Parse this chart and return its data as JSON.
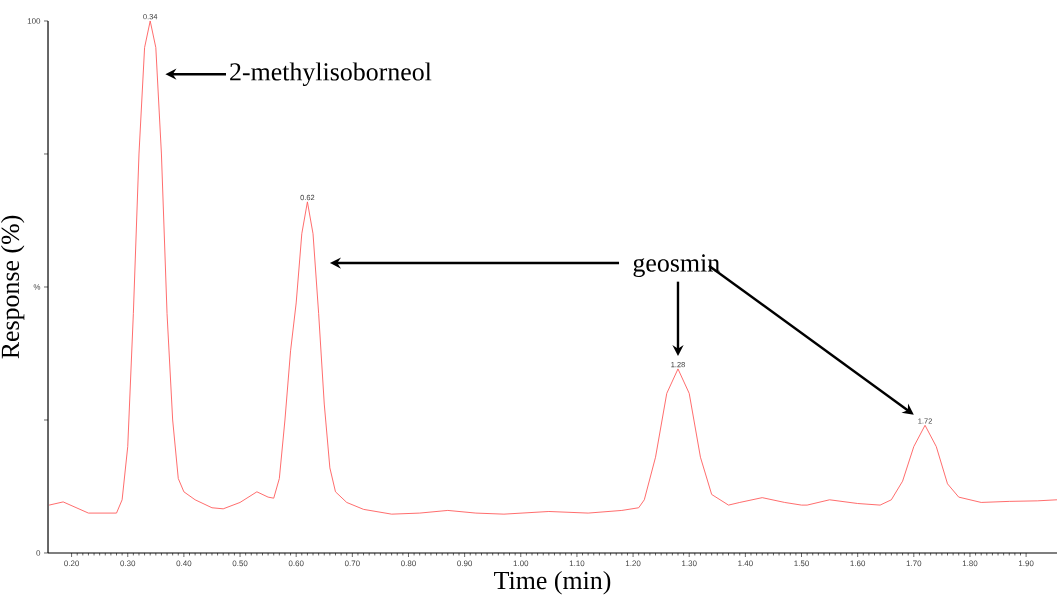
{
  "chart_data": {
    "type": "line",
    "xlabel": "Time (min)",
    "ylabel": "Response (%)",
    "color": "#ff5c5c",
    "x": [
      0.16,
      0.185,
      0.23,
      0.28,
      0.29,
      0.3,
      0.31,
      0.32,
      0.33,
      0.34,
      0.35,
      0.36,
      0.37,
      0.38,
      0.39,
      0.4,
      0.42,
      0.45,
      0.47,
      0.5,
      0.53,
      0.55,
      0.56,
      0.57,
      0.58,
      0.59,
      0.6,
      0.61,
      0.62,
      0.63,
      0.64,
      0.65,
      0.66,
      0.67,
      0.69,
      0.72,
      0.77,
      0.82,
      0.87,
      0.92,
      0.97,
      1.05,
      1.12,
      1.18,
      1.21,
      1.22,
      1.24,
      1.26,
      1.28,
      1.3,
      1.32,
      1.34,
      1.37,
      1.39,
      1.43,
      1.47,
      1.5,
      1.51,
      1.55,
      1.6,
      1.64,
      1.66,
      1.68,
      1.7,
      1.72,
      1.74,
      1.76,
      1.78,
      1.82,
      1.87,
      1.92,
      1.955
    ],
    "values": [
      9.0,
      9.6,
      7.5,
      7.5,
      10,
      20,
      45,
      75,
      95,
      100,
      95,
      75,
      45,
      25,
      14,
      11.5,
      10,
      8.5,
      8.3,
      9.5,
      11.5,
      10.5,
      10.3,
      14,
      25,
      38,
      47,
      60,
      66,
      60,
      45,
      28,
      16,
      11.5,
      9.5,
      8.2,
      7.3,
      7.5,
      8.0,
      7.5,
      7.3,
      7.8,
      7.5,
      8.0,
      8.5,
      10,
      18,
      30,
      34.6,
      30,
      18,
      11,
      9,
      9.5,
      10.4,
      9.5,
      9.0,
      9.0,
      10,
      9.3,
      9.0,
      10,
      13.5,
      20,
      24,
      20,
      13,
      10.5,
      9.5,
      9.7,
      9.8,
      10.0
    ],
    "xlim": [
      0.158,
      1.955
    ],
    "ylim": [
      0,
      100
    ],
    "xticks": [
      {
        "value": 0.2,
        "label": "0.20"
      },
      {
        "value": 0.3,
        "label": "0.30"
      },
      {
        "value": 0.4,
        "label": "0.40"
      },
      {
        "value": 0.5,
        "label": "0.50"
      },
      {
        "value": 0.6,
        "label": "0.60"
      },
      {
        "value": 0.7,
        "label": "0.70"
      },
      {
        "value": 0.8,
        "label": "0.80"
      },
      {
        "value": 0.9,
        "label": "0.90"
      },
      {
        "value": 1.0,
        "label": "1.00"
      },
      {
        "value": 1.1,
        "label": "1.10"
      },
      {
        "value": 1.2,
        "label": "1.20"
      },
      {
        "value": 1.3,
        "label": "1.30"
      },
      {
        "value": 1.4,
        "label": "1.40"
      },
      {
        "value": 1.5,
        "label": "1.50"
      },
      {
        "value": 1.6,
        "label": "1.60"
      },
      {
        "value": 1.7,
        "label": "1.70"
      },
      {
        "value": 1.8,
        "label": "1.80"
      },
      {
        "value": 1.9,
        "label": "1.90"
      }
    ],
    "yticks": [
      0,
      {
        "value": 25,
        "label": null
      },
      {
        "value": 50,
        "label": "%"
      },
      {
        "value": 75,
        "label": null
      },
      100
    ],
    "annotations": [
      {
        "text": "0.34",
        "x": 0.34,
        "y": 100
      },
      {
        "text": "0.62",
        "x": 0.62,
        "y": 66
      },
      {
        "text": "1.28",
        "x": 1.28,
        "y": 34.6
      },
      {
        "text": "1.72",
        "x": 1.72,
        "y": 24
      },
      "2-methylisoborneol",
      "geosmin"
    ]
  }
}
